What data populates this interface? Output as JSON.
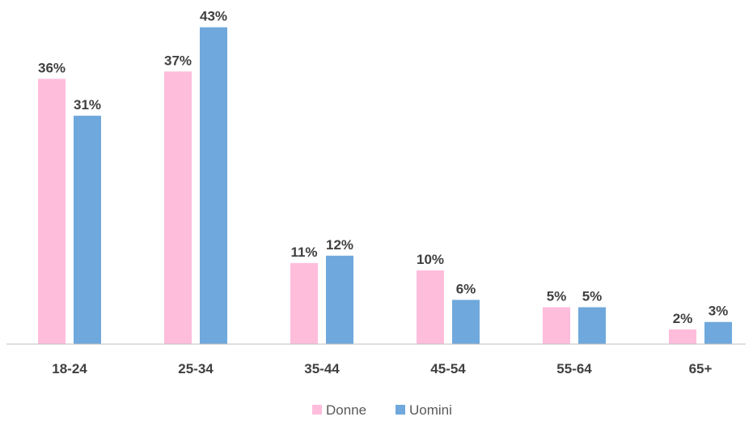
{
  "chart_data": {
    "type": "bar",
    "categories": [
      "18-24",
      "25-34",
      "35-44",
      "45-54",
      "55-64",
      "65+"
    ],
    "series": [
      {
        "name": "Donne",
        "values": [
          36,
          37,
          11,
          10,
          5,
          2
        ],
        "labels": [
          "36%",
          "37%",
          "11%",
          "10%",
          "5%",
          "2%"
        ],
        "color": "#FFBDDC"
      },
      {
        "name": "Uomini",
        "values": [
          31,
          43,
          12,
          6,
          5,
          3
        ],
        "labels": [
          "31%",
          "43%",
          "12%",
          "6%",
          "5%",
          "3%"
        ],
        "color": "#6FA8DC"
      }
    ],
    "ylim": [
      0,
      45
    ],
    "grid": false,
    "legend": "bottom",
    "axis_color": "#BFBFBF"
  }
}
